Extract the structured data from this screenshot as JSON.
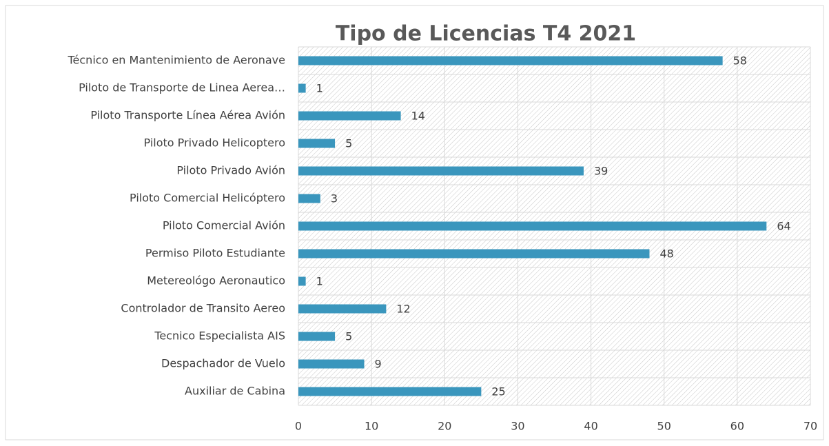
{
  "chart_data": {
    "type": "bar",
    "orientation": "horizontal",
    "title": "Tipo  de Licencias T4 2021",
    "categories": [
      "Técnico en Mantenimiento de Aeronave",
      "Piloto de Transporte de Linea Aerea…",
      "Piloto Transporte Línea Aérea Avión",
      "Piloto Privado Helicoptero",
      "Piloto Privado Avión",
      "Piloto Comercial Helicóptero",
      "Piloto Comercial Avión",
      "Permiso Piloto Estudiante",
      "Metereológo Aeronautico",
      "Controlador de Transito Aereo",
      "Tecnico Especialista AIS",
      "Despachador de Vuelo",
      "Auxiliar de Cabina"
    ],
    "values": [
      58,
      1,
      14,
      5,
      39,
      3,
      64,
      48,
      1,
      12,
      5,
      9,
      25
    ],
    "color": "#3a96bd",
    "xlim": [
      0,
      70
    ],
    "xticks": [
      0,
      10,
      20,
      30,
      40,
      50,
      60,
      70
    ],
    "grid": true
  }
}
